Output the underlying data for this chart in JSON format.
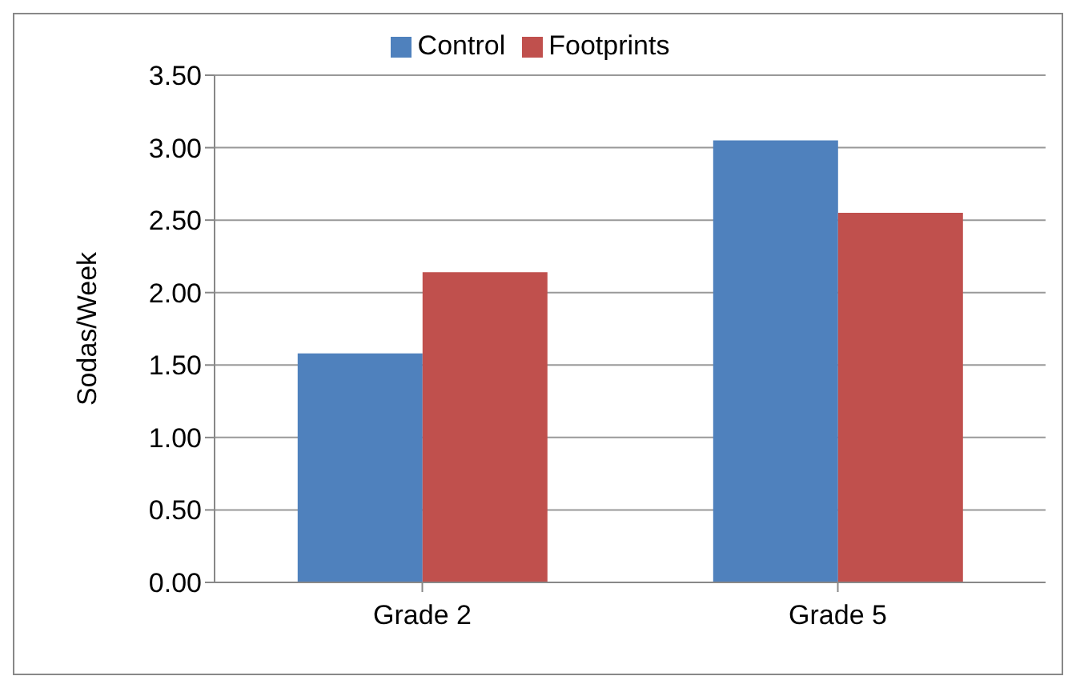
{
  "chart_data": {
    "type": "bar",
    "ylabel": "Sodas/Week",
    "categories": [
      "Grade 2",
      "Grade 5"
    ],
    "series": [
      {
        "name": "Control",
        "color": "#4f81bd",
        "values": [
          1.58,
          3.05
        ]
      },
      {
        "name": "Footprints",
        "color": "#c0504d",
        "values": [
          2.14,
          2.55
        ]
      }
    ],
    "ylim": [
      0,
      3.5
    ],
    "yticks": [
      {
        "value": 0,
        "label": "0.00"
      },
      {
        "value": 0.5,
        "label": "0.50"
      },
      {
        "value": 1,
        "label": "1.00"
      },
      {
        "value": 1.5,
        "label": "1.50"
      },
      {
        "value": 2,
        "label": "2.00"
      },
      {
        "value": 2.5,
        "label": "2.50"
      },
      {
        "value": 3,
        "label": "3.00"
      },
      {
        "value": 3.5,
        "label": "3.50"
      }
    ],
    "grid": "y",
    "legend": "top"
  }
}
